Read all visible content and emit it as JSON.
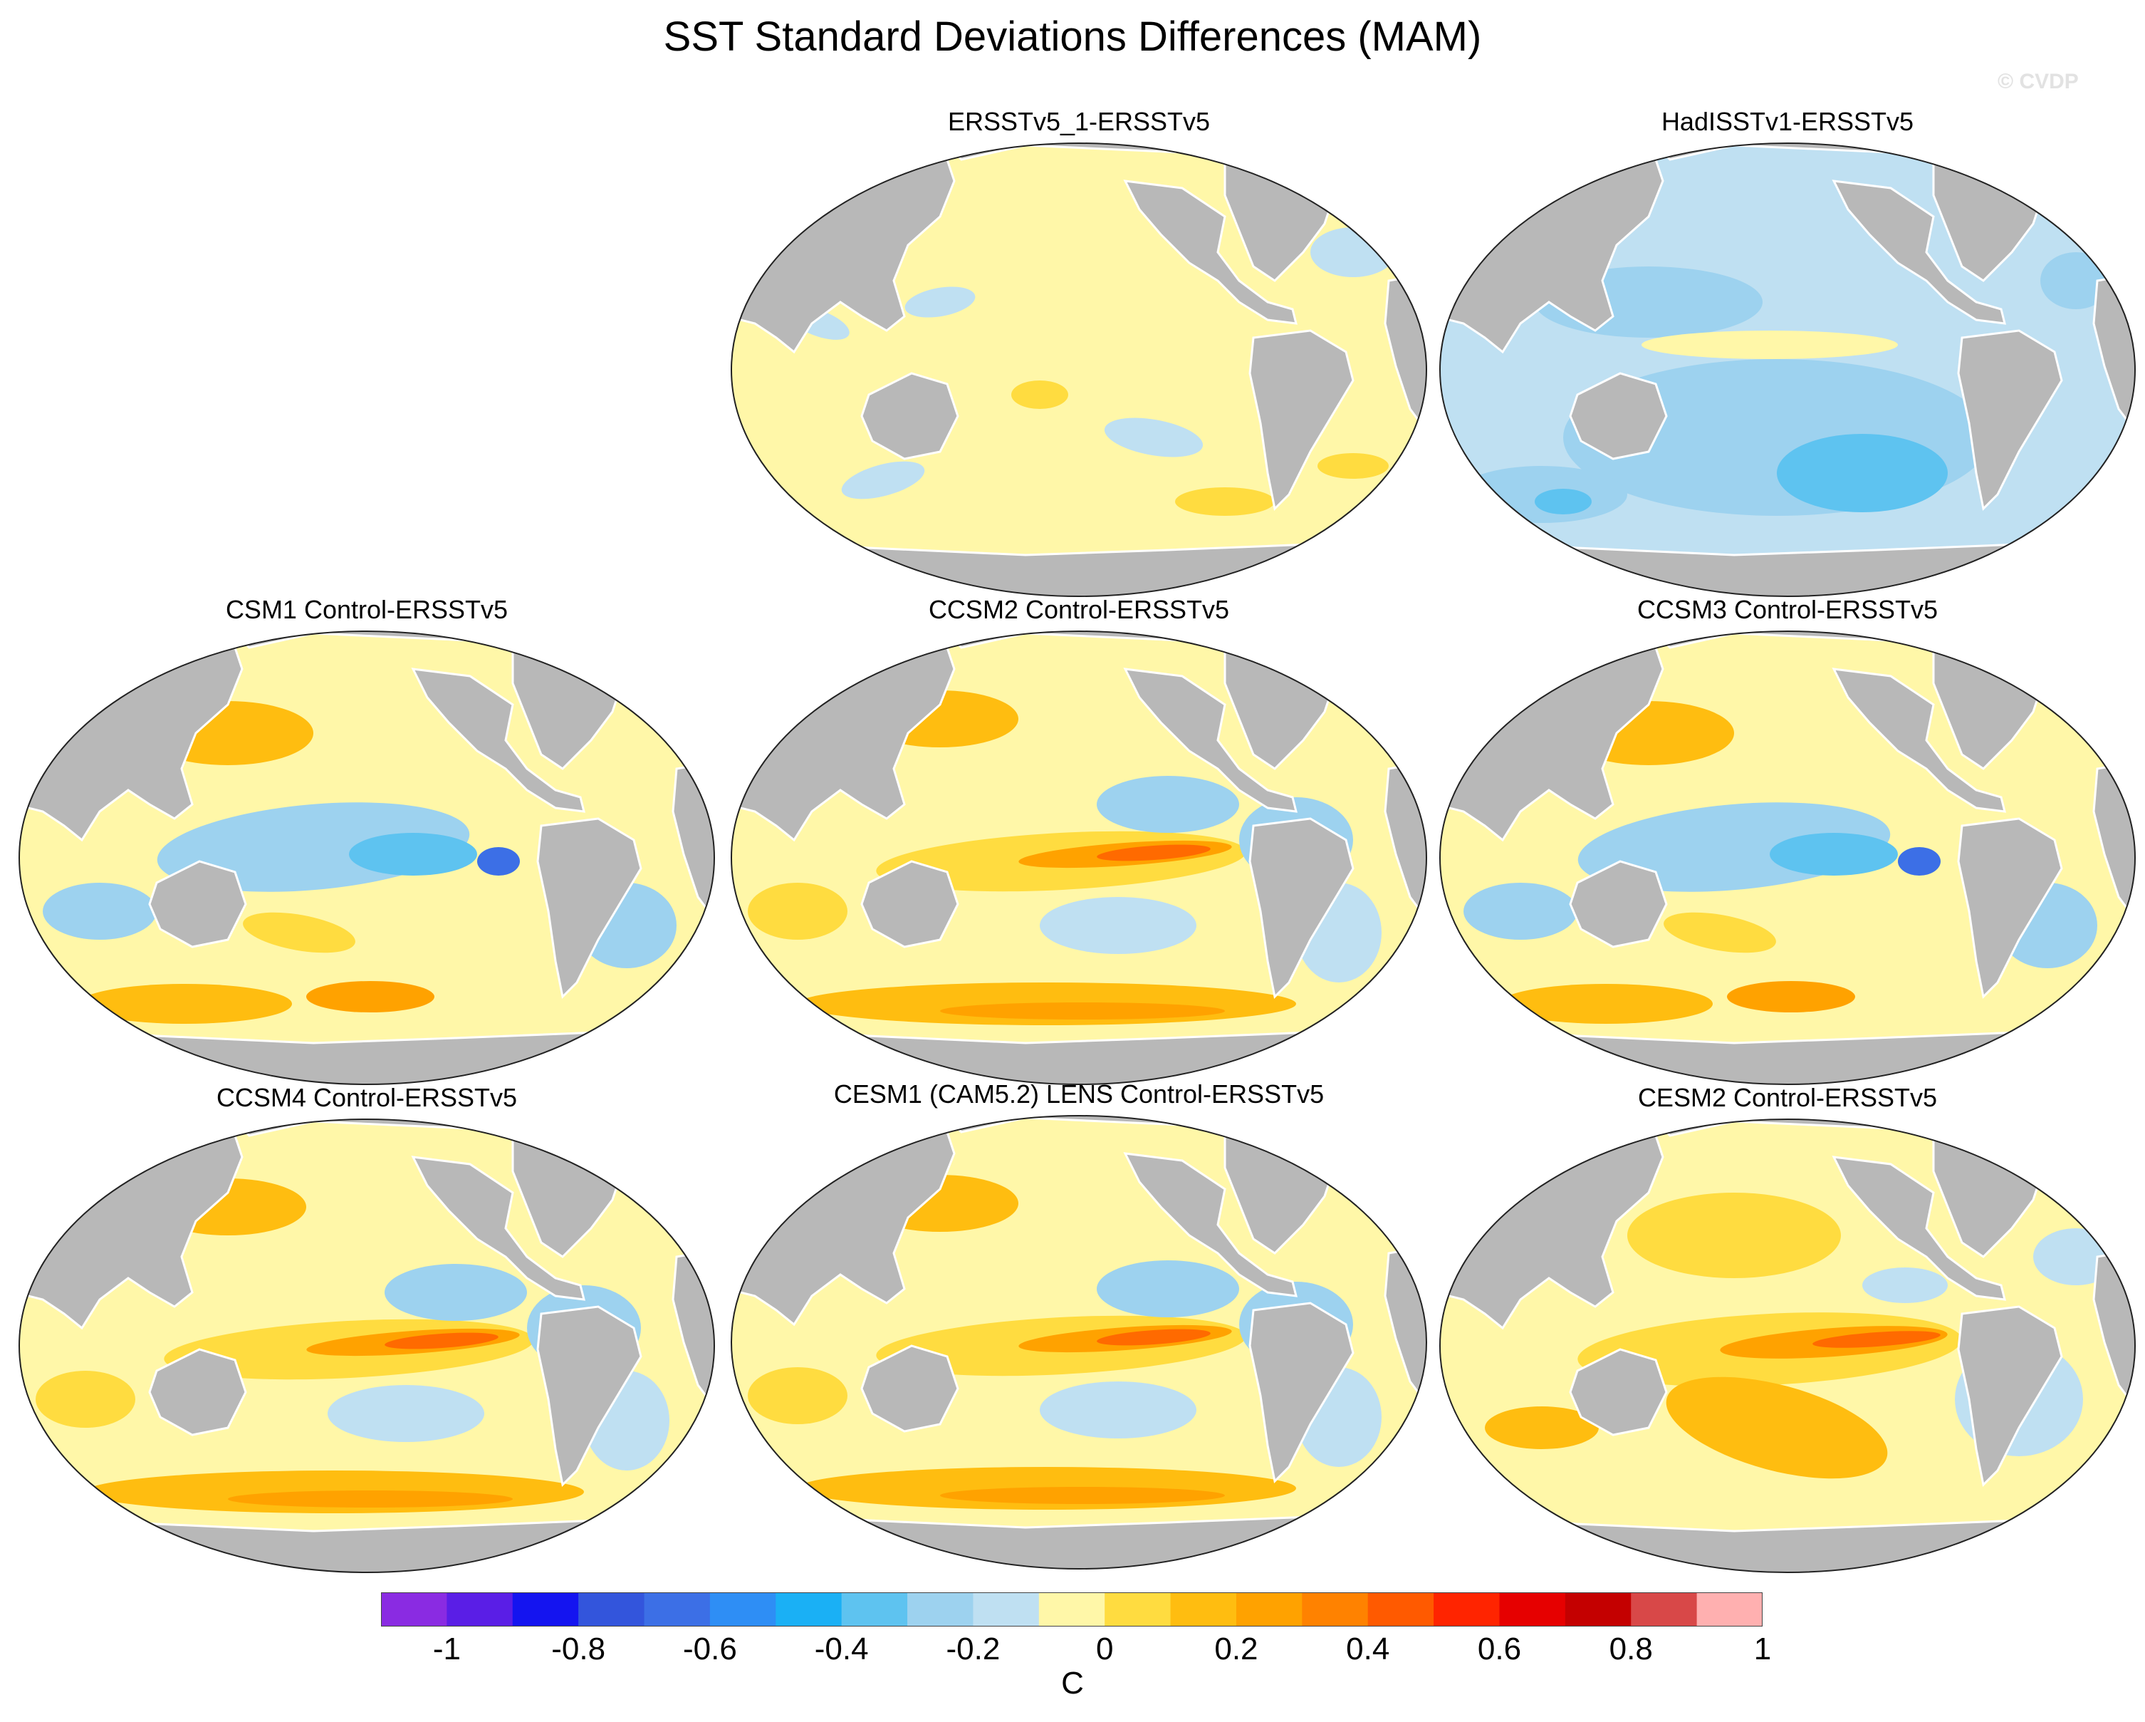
{
  "title": "SST Standard Deviations Differences (MAM)",
  "copyright": "© CVDP",
  "panels": [
    {
      "id": "p1",
      "title": "ERSSTv5_1-ERSSTv5",
      "pattern": "neutral"
    },
    {
      "id": "p2",
      "title": "HadISSTv1-ERSSTv5",
      "pattern": "cool"
    },
    {
      "id": "p3",
      "title": "CSM1 Control-ERSSTv5",
      "pattern": "mixed"
    },
    {
      "id": "p4",
      "title": "CCSM2 Control-ERSSTv5",
      "pattern": "warm-band"
    },
    {
      "id": "p5",
      "title": "CCSM3 Control-ERSSTv5",
      "pattern": "mixed"
    },
    {
      "id": "p6",
      "title": "CCSM4 Control-ERSSTv5",
      "pattern": "warm-band"
    },
    {
      "id": "p7",
      "title": "CESM1 (CAM5.2) LENS Control-ERSSTv5",
      "pattern": "warm-band"
    },
    {
      "id": "p8",
      "title": "CESM2 Control-ERSSTv5",
      "pattern": "warm-equator"
    }
  ],
  "colorbar": {
    "colors": [
      "#8a2be2",
      "#5a1ee6",
      "#1414f0",
      "#3355dc",
      "#3c6fe6",
      "#2e8ef5",
      "#1ab0f5",
      "#5ec3f0",
      "#9dd2ef",
      "#bfe0f2",
      "#fff7a8",
      "#ffdc40",
      "#ffbd10",
      "#ffa200",
      "#ff8200",
      "#ff5a00",
      "#ff2400",
      "#e60000",
      "#c40000",
      "#d84848",
      "#ffb0b0"
    ],
    "tick_values": [
      -1,
      -0.8,
      -0.6,
      -0.4,
      -0.2,
      0,
      0.2,
      0.4,
      0.6,
      0.8,
      1
    ],
    "tick_labels": [
      "-1",
      "-0.8",
      "-0.6",
      "-0.4",
      "-0.2",
      "0",
      "0.2",
      "0.4",
      "0.6",
      "0.8",
      "1"
    ],
    "units": "C"
  },
  "colors": {
    "land": "#b8b8b8",
    "neutral_warm": "#fff7a8",
    "neutral_cool": "#bfe0f2"
  }
}
